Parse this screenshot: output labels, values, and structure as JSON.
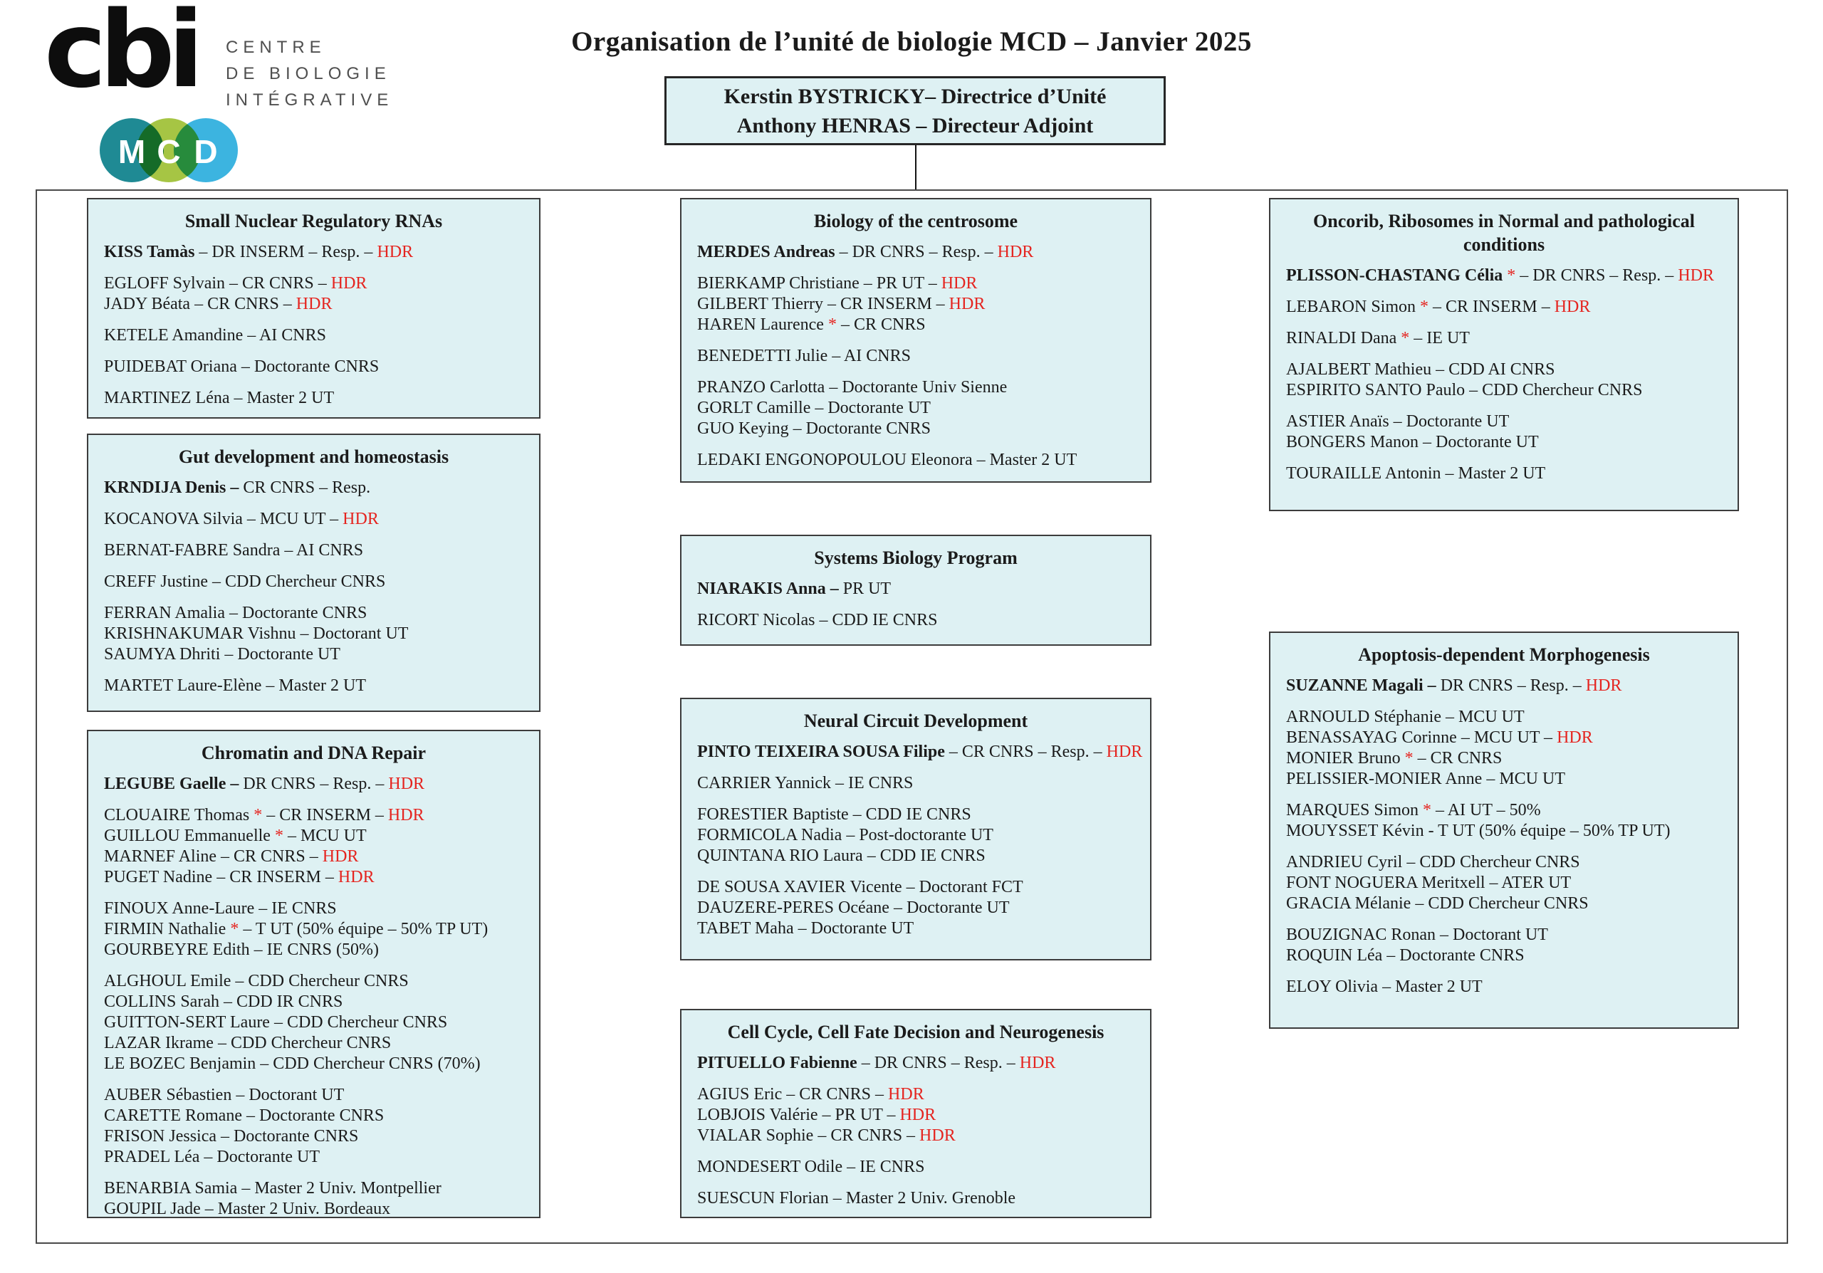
{
  "page_title": "Organisation de l’unité de biologie MCD – Janvier 2025",
  "colors": {
    "box_fill": "#def1f3",
    "box_border": "#3c3c3c",
    "red": "#e52520",
    "text": "#1b1b1b"
  },
  "logos": {
    "cbi_wordmark": "cbi",
    "cbi_caption_lines": [
      "CENTRE",
      "DE BIOLOGIE",
      "INTÉGRATIVE"
    ],
    "mcd_letters": [
      "M",
      "C",
      "D"
    ],
    "mcd_colors": [
      "#1f8a94",
      "#a6c544",
      "#3cb4e0"
    ]
  },
  "direction_box": {
    "lines": [
      "Kerstin BYSTRICKY– Directrice d’Unité",
      "Anthony HENRAS – Directeur Adjoint"
    ]
  },
  "teams": [
    {
      "id": "snrna",
      "title": "Small Nuclear Regulatory RNAs",
      "groups": [
        [
          [
            [
              "b",
              "KISS Tamàs"
            ],
            [
              "n",
              " – DR INSERM – Resp. – "
            ],
            [
              "r",
              "HDR"
            ]
          ]
        ],
        [
          [
            [
              "n",
              "EGLOFF Sylvain – CR CNRS – "
            ],
            [
              "r",
              "HDR"
            ]
          ],
          [
            [
              "n",
              "JADY Béata – CR CNRS – "
            ],
            [
              "r",
              "HDR"
            ]
          ]
        ],
        [
          [
            [
              "n",
              "KETELE Amandine – AI CNRS"
            ]
          ]
        ],
        [
          [
            [
              "n",
              "PUIDEBAT Oriana – Doctorante CNRS"
            ]
          ]
        ],
        [
          [
            [
              "n",
              "MARTINEZ Léna – Master 2 UT"
            ]
          ]
        ]
      ]
    },
    {
      "id": "gut",
      "title": "Gut development and homeostasis",
      "groups": [
        [
          [
            [
              "b",
              "KRNDIJA Denis – "
            ],
            [
              "n",
              "CR CNRS – Resp."
            ]
          ]
        ],
        [
          [
            [
              "n",
              "KOCANOVA Silvia – MCU UT – "
            ],
            [
              "r",
              "HDR"
            ]
          ]
        ],
        [
          [
            [
              "n",
              "BERNAT-FABRE Sandra – AI CNRS"
            ]
          ]
        ],
        [
          [
            [
              "n",
              "CREFF Justine – CDD Chercheur CNRS"
            ]
          ]
        ],
        [
          [
            [
              "n",
              "FERRAN Amalia – Doctorante CNRS"
            ]
          ],
          [
            [
              "n",
              "KRISHNAKUMAR Vishnu – Doctorant UT"
            ]
          ],
          [
            [
              "n",
              "SAUMYA Dhriti – Doctorante UT"
            ]
          ]
        ],
        [
          [
            [
              "n",
              "MARTET Laure-Elène – Master 2 UT"
            ]
          ]
        ]
      ]
    },
    {
      "id": "chromatin",
      "title": "Chromatin and DNA Repair",
      "groups": [
        [
          [
            [
              "b",
              "LEGUBE Gaelle – "
            ],
            [
              "n",
              "DR CNRS – Resp. – "
            ],
            [
              "r",
              "HDR"
            ]
          ]
        ],
        [
          [
            [
              "n",
              "CLOUAIRE Thomas "
            ],
            [
              "r",
              "*"
            ],
            [
              "n",
              " – CR INSERM – "
            ],
            [
              "r",
              "HDR"
            ]
          ],
          [
            [
              "n",
              "GUILLOU Emmanuelle "
            ],
            [
              "r",
              "*"
            ],
            [
              "n",
              " – MCU UT"
            ]
          ],
          [
            [
              "n",
              "MARNEF Aline – CR CNRS – "
            ],
            [
              "r",
              "HDR"
            ]
          ],
          [
            [
              "n",
              "PUGET Nadine – CR INSERM – "
            ],
            [
              "r",
              "HDR"
            ]
          ]
        ],
        [
          [
            [
              "n",
              "FINOUX Anne-Laure – IE CNRS"
            ]
          ],
          [
            [
              "n",
              "FIRMIN Nathalie "
            ],
            [
              "r",
              "*"
            ],
            [
              "n",
              " – T UT (50% équipe – 50% TP UT)"
            ]
          ],
          [
            [
              "n",
              "GOURBEYRE Edith – IE CNRS (50%)"
            ]
          ]
        ],
        [
          [
            [
              "n",
              "ALGHOUL Emile – CDD Chercheur CNRS"
            ]
          ],
          [
            [
              "n",
              "COLLINS Sarah – CDD IR CNRS"
            ]
          ],
          [
            [
              "n",
              "GUITTON-SERT Laure – CDD Chercheur CNRS"
            ]
          ],
          [
            [
              "n",
              "LAZAR Ikrame – CDD Chercheur CNRS"
            ]
          ],
          [
            [
              "n",
              "LE BOZEC Benjamin – CDD Chercheur CNRS (70%)"
            ]
          ]
        ],
        [
          [
            [
              "n",
              "AUBER Sébastien – Doctorant UT"
            ]
          ],
          [
            [
              "n",
              "CARETTE Romane – Doctorante CNRS"
            ]
          ],
          [
            [
              "n",
              "FRISON Jessica – Doctorante CNRS"
            ]
          ],
          [
            [
              "n",
              "PRADEL Léa – Doctorante UT"
            ]
          ]
        ],
        [
          [
            [
              "n",
              "BENARBIA Samia – Master 2 Univ. Montpellier"
            ]
          ],
          [
            [
              "n",
              "GOUPIL Jade – Master 2 Univ. Bordeaux"
            ]
          ]
        ]
      ]
    },
    {
      "id": "centrosome",
      "title": "Biology of the centrosome",
      "groups": [
        [
          [
            [
              "b",
              "MERDES Andreas"
            ],
            [
              "n",
              " – DR CNRS – Resp. – "
            ],
            [
              "r",
              "HDR"
            ]
          ]
        ],
        [
          [
            [
              "n",
              "BIERKAMP Christiane – PR UT – "
            ],
            [
              "r",
              "HDR"
            ]
          ],
          [
            [
              "n",
              "GILBERT Thierry – CR INSERM – "
            ],
            [
              "r",
              "HDR"
            ]
          ],
          [
            [
              "n",
              "HAREN Laurence "
            ],
            [
              "r",
              "*"
            ],
            [
              "n",
              " – CR CNRS"
            ]
          ]
        ],
        [
          [
            [
              "n",
              "BENEDETTI Julie – AI CNRS"
            ]
          ]
        ],
        [
          [
            [
              "n",
              "PRANZO Carlotta – Doctorante Univ Sienne"
            ]
          ],
          [
            [
              "n",
              "GORLT Camille – Doctorante UT"
            ]
          ],
          [
            [
              "n",
              "GUO Keying – Doctorante CNRS"
            ]
          ]
        ],
        [
          [
            [
              "n",
              "LEDAKI ENGONOPOULOU Eleonora – Master 2 UT"
            ]
          ]
        ]
      ]
    },
    {
      "id": "systems",
      "title": "Systems Biology Program",
      "groups": [
        [
          [
            [
              "b",
              "NIARAKIS Anna – "
            ],
            [
              "n",
              "PR UT"
            ]
          ]
        ],
        [
          [
            [
              "n",
              "RICORT Nicolas – CDD IE CNRS"
            ]
          ]
        ]
      ]
    },
    {
      "id": "neural",
      "title": "Neural Circuit Development",
      "groups": [
        [
          [
            [
              "b",
              "PINTO TEIXEIRA SOUSA Filipe"
            ],
            [
              "n",
              " – CR CNRS – Resp. – "
            ],
            [
              "r",
              "HDR"
            ]
          ]
        ],
        [
          [
            [
              "n",
              "CARRIER Yannick – IE CNRS"
            ]
          ]
        ],
        [
          [
            [
              "n",
              "FORESTIER Baptiste – CDD IE CNRS"
            ]
          ],
          [
            [
              "n",
              "FORMICOLA Nadia – Post-doctorante UT"
            ]
          ],
          [
            [
              "n",
              "QUINTANA RIO Laura – CDD IE CNRS"
            ]
          ]
        ],
        [
          [
            [
              "n",
              "DE SOUSA XAVIER Vicente – Doctorant FCT"
            ]
          ],
          [
            [
              "n",
              "DAUZERE-PERES Océane – Doctorante UT"
            ]
          ],
          [
            [
              "n",
              "TABET Maha – Doctorante UT"
            ]
          ]
        ]
      ]
    },
    {
      "id": "cellcycle",
      "title": "Cell Cycle, Cell Fate Decision and Neurogenesis",
      "groups": [
        [
          [
            [
              "b",
              "PITUELLO Fabienne"
            ],
            [
              "n",
              " – DR CNRS – Resp. – "
            ],
            [
              "r",
              "HDR"
            ]
          ]
        ],
        [
          [
            [
              "n",
              "AGIUS Eric – CR CNRS – "
            ],
            [
              "r",
              "HDR"
            ]
          ],
          [
            [
              "n",
              "LOBJOIS Valérie – PR UT – "
            ],
            [
              "r",
              "HDR"
            ]
          ],
          [
            [
              "n",
              "VIALAR Sophie – CR CNRS – "
            ],
            [
              "r",
              "HDR"
            ]
          ]
        ],
        [
          [
            [
              "n",
              "MONDESERT Odile – IE CNRS"
            ]
          ]
        ],
        [
          [
            [
              "n",
              "SUESCUN Florian – Master 2 Univ. Grenoble"
            ]
          ]
        ]
      ]
    },
    {
      "id": "oncorib",
      "title": "Oncorib, Ribosomes in Normal and pathological conditions",
      "groups": [
        [
          [
            [
              "b",
              "PLISSON-CHASTANG Célia "
            ],
            [
              "r",
              "*"
            ],
            [
              "n",
              "  – DR CNRS – Resp. – "
            ],
            [
              "r",
              "HDR"
            ]
          ]
        ],
        [
          [
            [
              "n",
              "LEBARON Simon "
            ],
            [
              "r",
              "*"
            ],
            [
              "n",
              " – CR INSERM – "
            ],
            [
              "r",
              "HDR"
            ]
          ]
        ],
        [
          [
            [
              "n",
              "RINALDI Dana "
            ],
            [
              "r",
              "*"
            ],
            [
              "n",
              " –  IE UT"
            ]
          ]
        ],
        [
          [
            [
              "n",
              "AJALBERT Mathieu – CDD AI CNRS"
            ]
          ],
          [
            [
              "n",
              "ESPIRITO SANTO Paulo – CDD Chercheur CNRS"
            ]
          ]
        ],
        [
          [
            [
              "n",
              "ASTIER Anaïs – Doctorante UT"
            ]
          ],
          [
            [
              "n",
              "BONGERS Manon – Doctorante UT"
            ]
          ]
        ],
        [
          [
            [
              "n",
              "TOURAILLE Antonin – Master 2 UT"
            ]
          ]
        ]
      ]
    },
    {
      "id": "apoptosis",
      "title": "Apoptosis-dependent Morphogenesis",
      "groups": [
        [
          [
            [
              "b",
              "SUZANNE Magali – "
            ],
            [
              "n",
              "DR CNRS – Resp. – "
            ],
            [
              "r",
              "HDR"
            ]
          ]
        ],
        [
          [
            [
              "n",
              "ARNOULD Stéphanie – MCU UT"
            ]
          ],
          [
            [
              "n",
              "BENASSAYAG Corinne – MCU UT – "
            ],
            [
              "r",
              "HDR"
            ]
          ],
          [
            [
              "n",
              "MONIER Bruno "
            ],
            [
              "r",
              "*"
            ],
            [
              "n",
              " – CR CNRS"
            ]
          ],
          [
            [
              "n",
              "PELISSIER-MONIER Anne – MCU UT"
            ]
          ]
        ],
        [
          [
            [
              "n",
              "MARQUES Simon "
            ],
            [
              "r",
              "*"
            ],
            [
              "n",
              " – AI UT – 50%"
            ]
          ],
          [
            [
              "n",
              "MOUYSSET Kévin - T UT (50% équipe – 50% TP UT)"
            ]
          ]
        ],
        [
          [
            [
              "n",
              "ANDRIEU Cyril – CDD Chercheur CNRS"
            ]
          ],
          [
            [
              "n",
              "FONT NOGUERA Meritxell – ATER UT"
            ]
          ],
          [
            [
              "n",
              "GRACIA Mélanie – CDD Chercheur CNRS"
            ]
          ]
        ],
        [
          [
            [
              "n",
              "BOUZIGNAC Ronan – Doctorant UT"
            ]
          ],
          [
            [
              "n",
              "ROQUIN Léa – Doctorante CNRS"
            ]
          ]
        ],
        [
          [
            [
              "n",
              "ELOY Olivia – Master 2 UT"
            ]
          ]
        ]
      ]
    }
  ]
}
